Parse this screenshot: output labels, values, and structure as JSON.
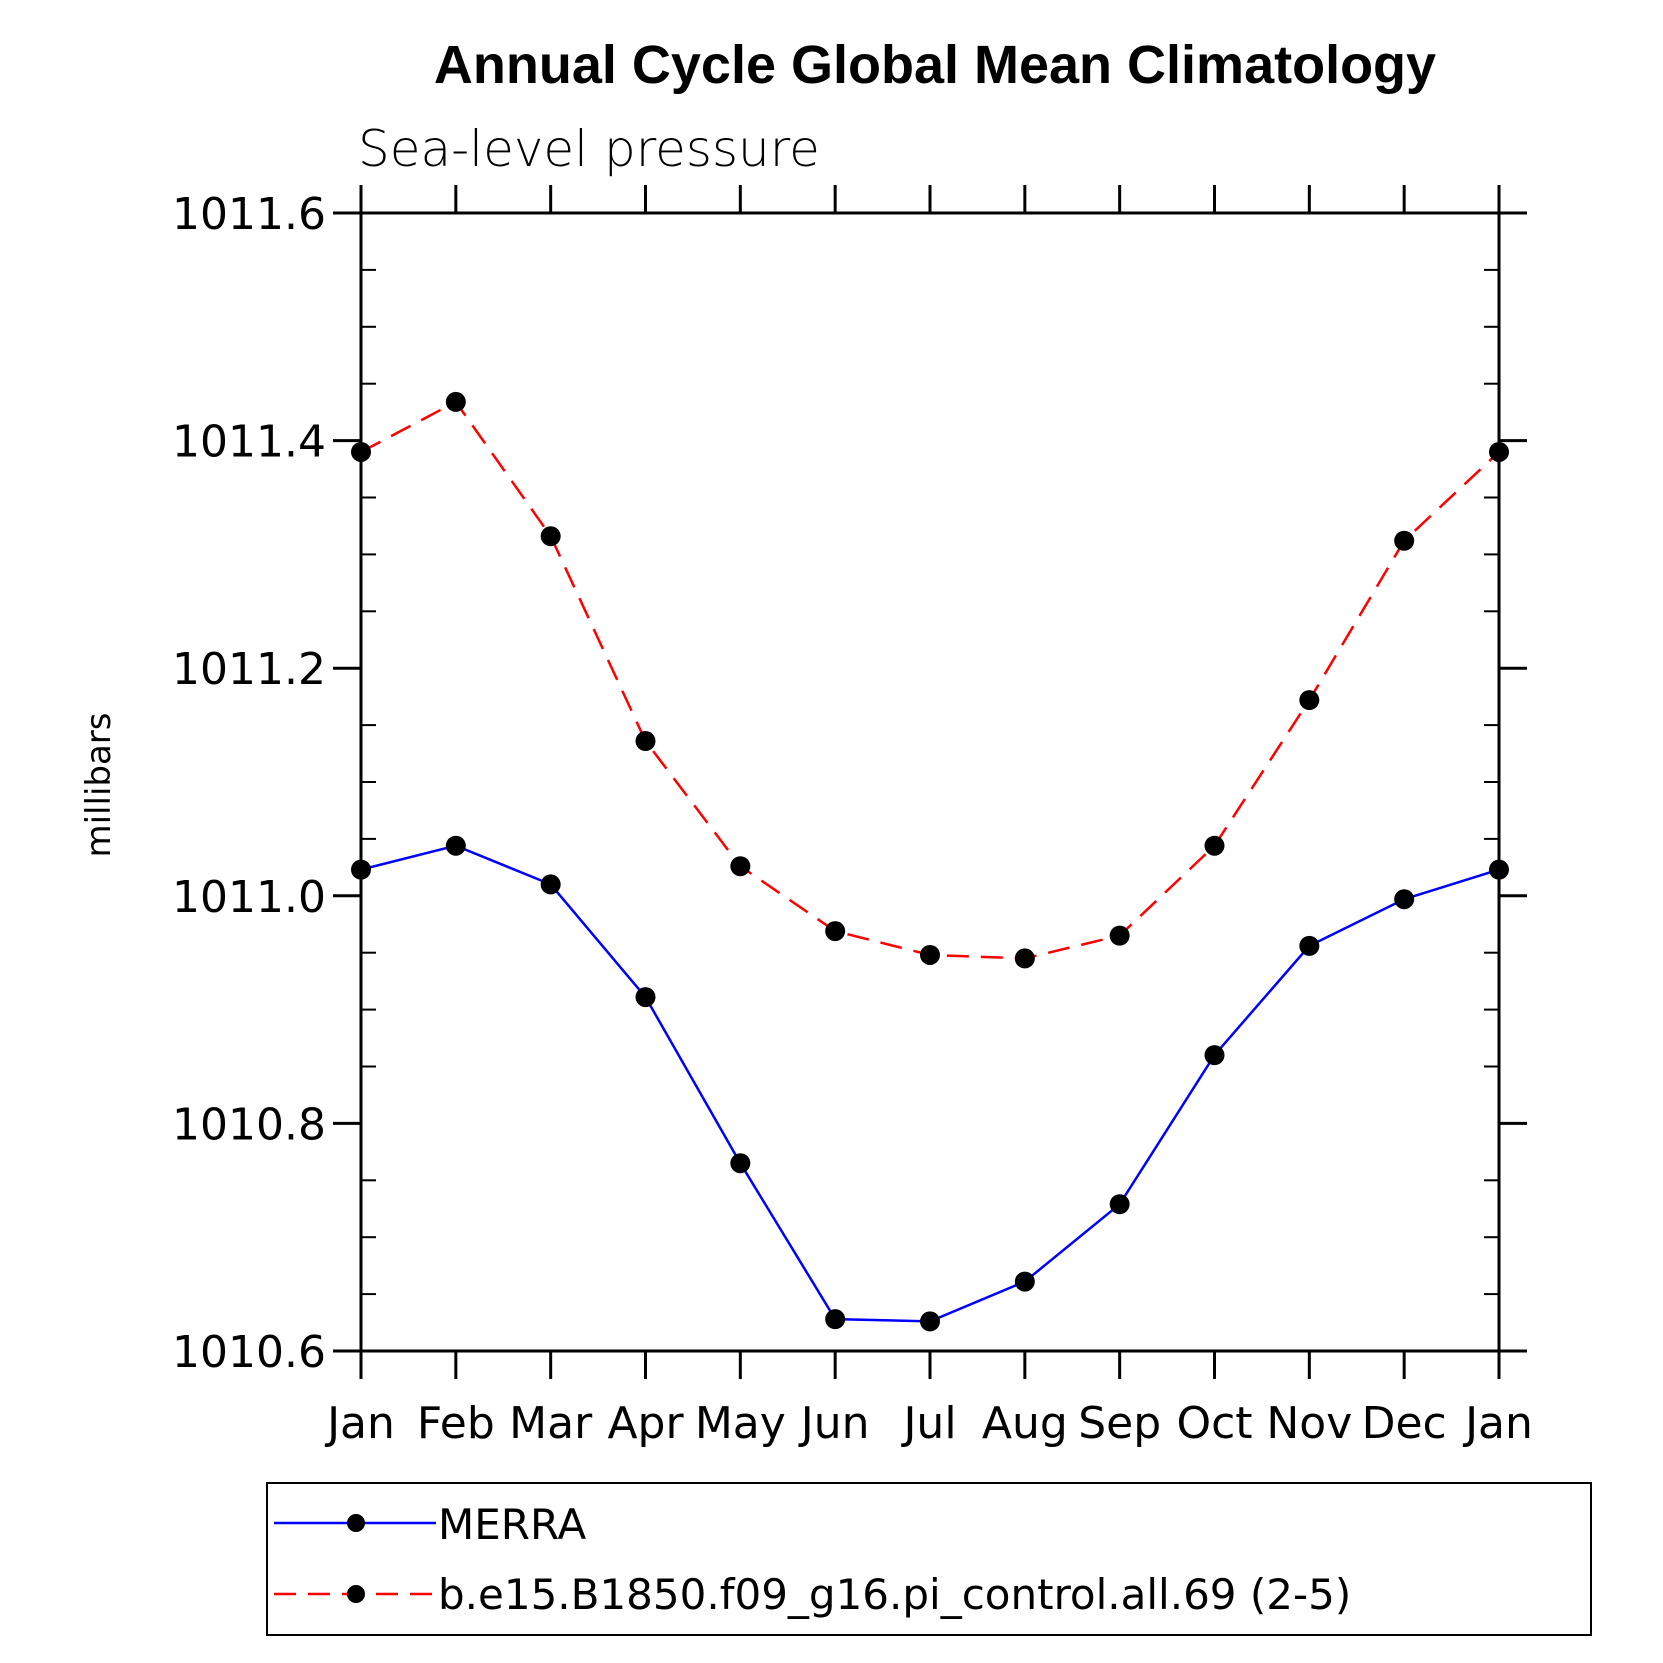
{
  "chart_data": {
    "type": "line",
    "title": "Annual Cycle Global Mean Climatology",
    "subtitle": "Sea-level pressure",
    "xlabel": "",
    "ylabel": "millibars",
    "categories": [
      "Jan",
      "Feb",
      "Mar",
      "Apr",
      "May",
      "Jun",
      "Jul",
      "Aug",
      "Sep",
      "Oct",
      "Nov",
      "Dec",
      "Jan"
    ],
    "ylim": [
      1010.6,
      1011.6
    ],
    "yticks": [
      1010.6,
      1010.8,
      1011.0,
      1011.2,
      1011.4,
      1011.6
    ],
    "ytick_labels": [
      "1010.6",
      "1010.8",
      "1011.0",
      "1011.2",
      "1011.4",
      "1011.6"
    ],
    "grid": false,
    "legend_position": "bottom",
    "series": [
      {
        "name": "MERRA",
        "color": "#0000ff",
        "style": "solid",
        "marker": "circle",
        "values": [
          1011.023,
          1011.044,
          1011.01,
          1010.911,
          1010.765,
          1010.628,
          1010.626,
          1010.661,
          1010.729,
          1010.86,
          1010.956,
          1010.997,
          1011.023
        ]
      },
      {
        "name": "b.e15.B1850.f09_g16.pi_control.all.69 (2-5)",
        "color": "#ff0000",
        "style": "dashed",
        "marker": "circle",
        "values": [
          1011.39,
          1011.434,
          1011.316,
          1011.136,
          1011.026,
          1010.969,
          1010.948,
          1010.945,
          1010.965,
          1011.044,
          1011.172,
          1011.312,
          1011.39
        ]
      }
    ]
  }
}
